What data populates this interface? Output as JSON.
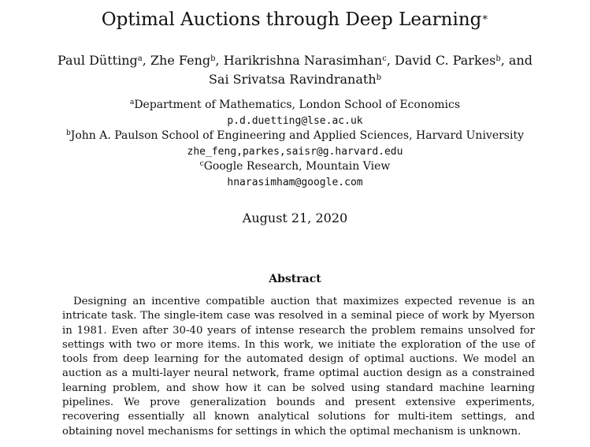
{
  "paper": {
    "title": "Optimal Auctions through Deep Learning",
    "title_mark": "∗",
    "authors_line1": [
      {
        "name": "Paul Dütting",
        "sup": "a",
        "sep": ", "
      },
      {
        "name": "Zhe Feng",
        "sup": "b",
        "sep": ", "
      },
      {
        "name": "Harikrishna Narasimhan",
        "sup": "c",
        "sep": ", "
      },
      {
        "name": "David C. Parkes",
        "sup": "b",
        "sep": ", and"
      }
    ],
    "authors_line2": {
      "name": "Sai Srivatsa Ravindranath",
      "sup": "b"
    },
    "affiliations": [
      {
        "sup": "a",
        "name": "Department of Mathematics, London School of Economics",
        "email": "p.d.duetting@lse.ac.uk"
      },
      {
        "sup": "b",
        "name": "John A. Paulson School of Engineering and Applied Sciences, Harvard University",
        "email": "zhe_feng,parkes,saisr@g.harvard.edu"
      },
      {
        "sup": "c",
        "name": "Google Research, Mountain View",
        "email": "hnarasimham@google.com"
      }
    ],
    "date": "August 21, 2020",
    "abstract_heading": "Abstract",
    "abstract_text": "Designing an incentive compatible auction that maximizes expected revenue is an intricate task. The single-item case was resolved in a seminal piece of work by Myerson in 1981. Even after 30-40 years of intense research the problem remains unsolved for settings with two or more items. In this work, we initiate the exploration of the use of tools from deep learning for the automated design of optimal auctions. We model an auction as a multi-layer neural network, frame optimal auction design as a constrained learning problem, and show how it can be solved using standard machine learning pipelines. We prove generalization bounds and present extensive experiments, recovering essentially all known analytical solutions for multi-item settings, and obtaining novel mechanisms for settings in which the optimal mechanism is unknown."
  }
}
